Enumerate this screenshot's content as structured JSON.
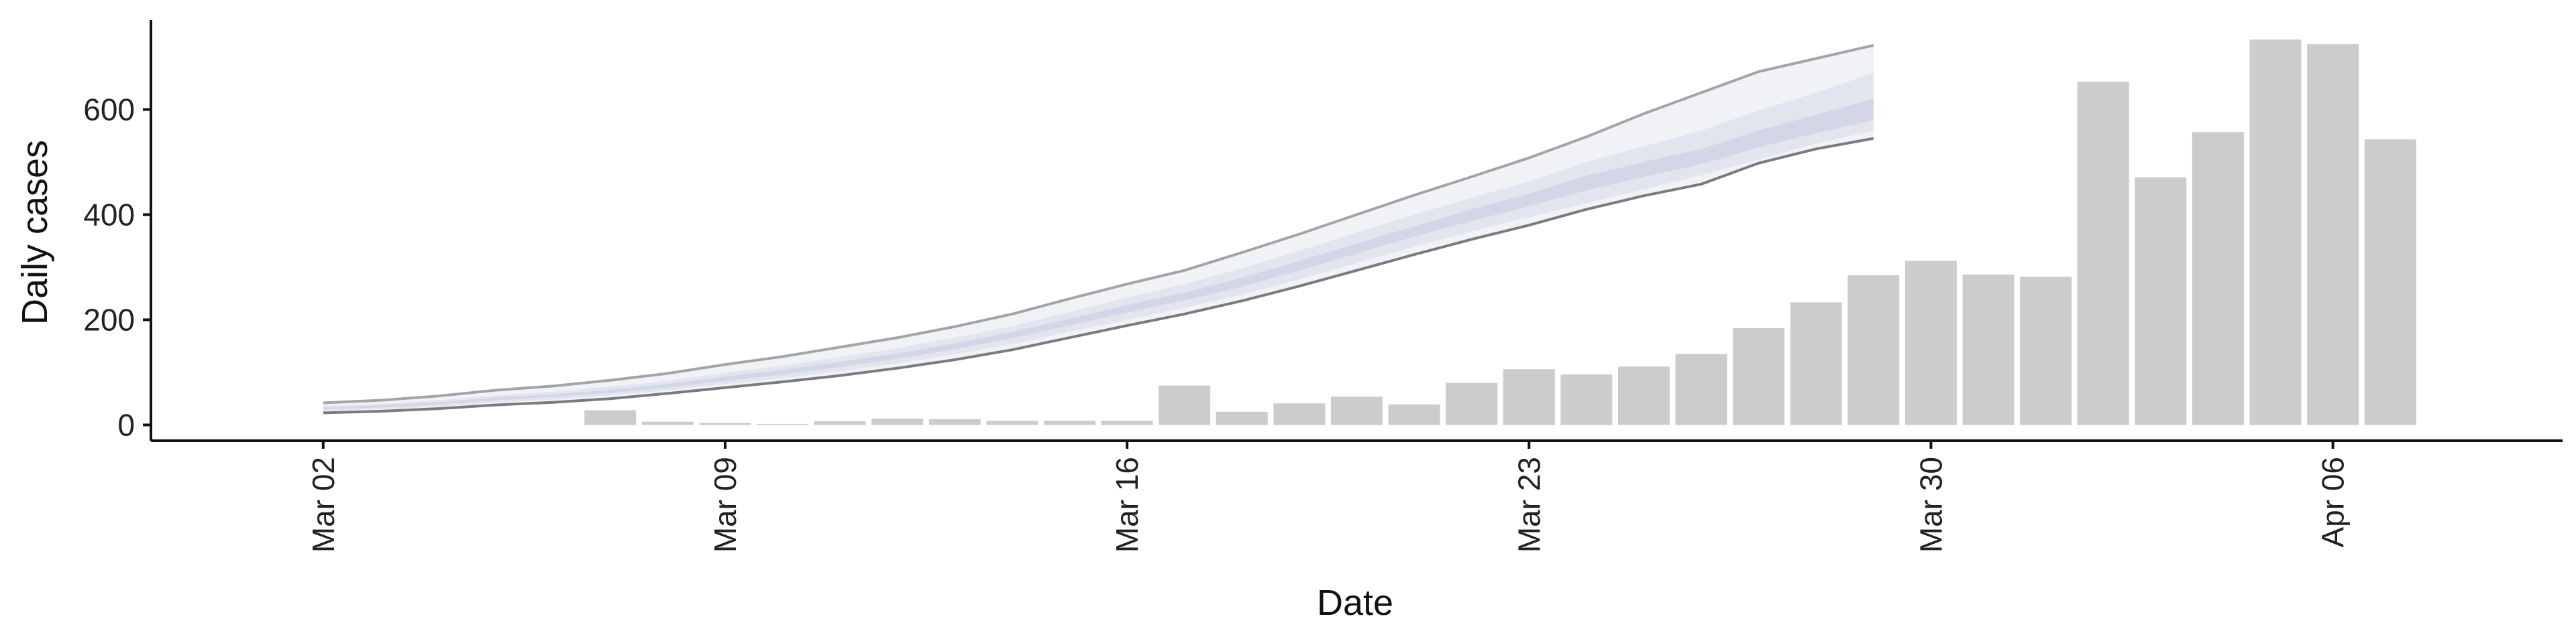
{
  "chart_data": {
    "type": "bar",
    "xlabel": "Date",
    "ylabel": "Daily cases",
    "ylim": [
      -30,
      770
    ],
    "yticks": [
      0,
      200,
      400,
      600
    ],
    "x_range": [
      "2020-02-28",
      "2020-04-10"
    ],
    "xticks": [
      {
        "date": "2020-03-02",
        "label": "Mar 02"
      },
      {
        "date": "2020-03-09",
        "label": "Mar 09"
      },
      {
        "date": "2020-03-16",
        "label": "Mar 16"
      },
      {
        "date": "2020-03-23",
        "label": "Mar 23"
      },
      {
        "date": "2020-03-30",
        "label": "Mar 30"
      },
      {
        "date": "2020-04-06",
        "label": "Apr 06"
      }
    ],
    "grid": false,
    "bars": {
      "color": "#cccccc",
      "dates": [
        "2020-03-07",
        "2020-03-08",
        "2020-03-09",
        "2020-03-10",
        "2020-03-11",
        "2020-03-12",
        "2020-03-13",
        "2020-03-14",
        "2020-03-15",
        "2020-03-16",
        "2020-03-17",
        "2020-03-18",
        "2020-03-19",
        "2020-03-20",
        "2020-03-21",
        "2020-03-22",
        "2020-03-23",
        "2020-03-24",
        "2020-03-25",
        "2020-03-26",
        "2020-03-27",
        "2020-03-28",
        "2020-03-29",
        "2020-03-30",
        "2020-03-31",
        "2020-04-01",
        "2020-04-02",
        "2020-04-03",
        "2020-04-04",
        "2020-04-05",
        "2020-04-06",
        "2020-04-07"
      ],
      "values": [
        28,
        6,
        4,
        2,
        7,
        12,
        11,
        8,
        8,
        8,
        75,
        25,
        41,
        54,
        39,
        80,
        106,
        96,
        111,
        135,
        184,
        233,
        285,
        312,
        286,
        282,
        653,
        471,
        557,
        733,
        724,
        543
      ]
    },
    "forecast": {
      "colors": {
        "band_90": "#f1f2f6",
        "band_50": "#e3e5ee",
        "band_20": "#d2d6e6",
        "upper_edge": "#a3a3a8",
        "lower_edge": "#7a7a80"
      },
      "dates": [
        "2020-03-02",
        "2020-03-03",
        "2020-03-04",
        "2020-03-05",
        "2020-03-06",
        "2020-03-07",
        "2020-03-08",
        "2020-03-09",
        "2020-03-10",
        "2020-03-11",
        "2020-03-12",
        "2020-03-13",
        "2020-03-14",
        "2020-03-15",
        "2020-03-16",
        "2020-03-17",
        "2020-03-18",
        "2020-03-19",
        "2020-03-20",
        "2020-03-21",
        "2020-03-22",
        "2020-03-23",
        "2020-03-24",
        "2020-03-25",
        "2020-03-26",
        "2020-03-27",
        "2020-03-28",
        "2020-03-29"
      ],
      "upper_90": [
        42,
        47,
        55,
        66,
        74,
        85,
        98,
        115,
        130,
        148,
        166,
        187,
        211,
        240,
        268,
        294,
        328,
        363,
        400,
        437,
        472,
        508,
        548,
        592,
        632,
        672,
        697,
        722
      ],
      "upper_50": [
        36,
        40,
        47,
        56,
        63,
        73,
        84,
        99,
        113,
        129,
        146,
        166,
        188,
        215,
        242,
        268,
        298,
        331,
        366,
        400,
        432,
        463,
        500,
        530,
        560,
        598,
        632,
        670
      ],
      "upper_20": [
        33,
        37,
        43,
        52,
        58,
        67,
        78,
        92,
        105,
        120,
        136,
        155,
        177,
        202,
        228,
        252,
        280,
        312,
        345,
        378,
        410,
        440,
        474,
        500,
        525,
        560,
        590,
        620
      ],
      "lower_20": [
        30,
        33,
        39,
        47,
        53,
        61,
        71,
        84,
        96,
        110,
        126,
        144,
        165,
        189,
        214,
        237,
        263,
        294,
        326,
        358,
        388,
        416,
        446,
        472,
        496,
        528,
        555,
        580
      ],
      "lower_50": [
        27,
        30,
        35,
        43,
        48,
        56,
        66,
        78,
        89,
        102,
        117,
        134,
        154,
        177,
        200,
        223,
        248,
        277,
        308,
        339,
        368,
        395,
        422,
        448,
        475,
        505,
        535,
        560
      ],
      "lower_90": [
        23,
        26,
        31,
        38,
        43,
        50,
        60,
        71,
        82,
        94,
        108,
        124,
        143,
        166,
        189,
        211,
        236,
        264,
        294,
        324,
        353,
        380,
        410,
        436,
        458,
        498,
        525,
        545
      ]
    }
  }
}
